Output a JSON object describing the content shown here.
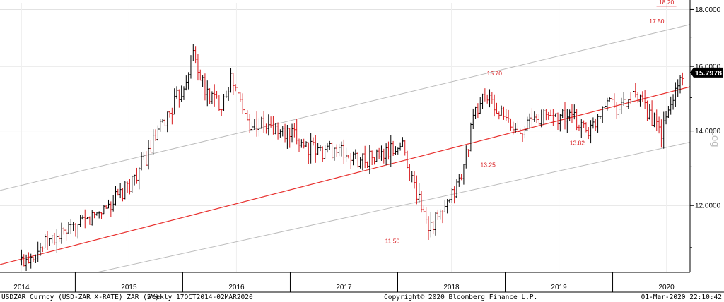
{
  "chart_data": {
    "type": "ohlc-bar",
    "title": "",
    "scale": "Log",
    "yscale": "log",
    "ylim": [
      10.45,
      18.25
    ],
    "y_ticks": [
      "12.0000",
      "14.0000",
      "16.0000",
      "18.0000"
    ],
    "y_tick_values": [
      12,
      14,
      16,
      18
    ],
    "x_labels": [
      "2014",
      "2015",
      "2016",
      "2017",
      "2018",
      "2019",
      "2020"
    ],
    "x_label_positions": [
      2014.0,
      2015.0,
      2016.0,
      2017.0,
      2018.0,
      2019.0,
      2020.0
    ],
    "x_dividers": [
      2014.5,
      2015.5,
      2016.5,
      2017.5,
      2018.5,
      2019.5
    ],
    "xlim": [
      2013.8,
      2020.22
    ],
    "last_value": "15.7978",
    "last_value_num": 15.7978,
    "grid": true,
    "channel": {
      "middle": {
        "from": [
          2013.8,
          10.62
        ],
        "to": [
          2020.22,
          15.34
        ],
        "color": "#e8302e"
      },
      "upper": {
        "from": [
          2013.8,
          12.38
        ],
        "to": [
          2020.22,
          17.45
        ],
        "color": "#bcbcbc"
      },
      "lower": {
        "from": [
          2014.7,
          10.45
        ],
        "to": [
          2020.22,
          13.68
        ],
        "color": "#bcbcbc"
      }
    },
    "annotations": [
      {
        "text": "18.20",
        "x": 2020.0,
        "y": 18.2
      },
      {
        "text": "17.50",
        "x": 2019.91,
        "y": 17.5
      },
      {
        "text": "15.70",
        "x": 2018.4,
        "y": 15.7
      },
      {
        "text": "13.82",
        "x": 2019.17,
        "y": 13.6
      },
      {
        "text": "13.25",
        "x": 2018.34,
        "y": 13.0
      },
      {
        "text": "11.50",
        "x": 2017.45,
        "y": 11.1
      }
    ],
    "series_anchors": {
      "x": [
        2014.0,
        2014.3,
        2014.55,
        2014.75,
        2014.95,
        2015.15,
        2015.35,
        2015.5,
        2015.6,
        2015.7,
        2015.85,
        2015.95,
        2016.1,
        2016.3,
        2016.55,
        2016.75,
        2016.9,
        2017.1,
        2017.35,
        2017.55,
        2017.65,
        2017.8,
        2017.95,
        2018.1,
        2018.2,
        2018.3,
        2018.45,
        2018.6,
        2018.75,
        2018.9,
        2019.1,
        2019.3,
        2019.45,
        2019.55,
        2019.7,
        2019.85,
        2019.95,
        2020.05,
        2020.15
      ],
      "close": [
        10.7,
        11.2,
        11.5,
        11.9,
        12.3,
        13.2,
        14.4,
        15.3,
        16.5,
        15.2,
        14.8,
        15.6,
        14.3,
        14.1,
        13.8,
        13.4,
        13.5,
        13.2,
        13.3,
        13.6,
        12.5,
        11.5,
        11.9,
        12.8,
        14.3,
        15.1,
        14.5,
        14.0,
        14.3,
        14.5,
        14.4,
        14.0,
        15.1,
        14.7,
        15.0,
        14.5,
        13.9,
        14.9,
        15.8
      ]
    },
    "bar_count": 282,
    "up_color": "#000000",
    "down_color": "#d8191c"
  },
  "footer": {
    "security": "USDZAR Curncy (USD-ZAR X-RATE) ZAR (5Y)",
    "period": "Weekly 17OCT2014-02MAR2020",
    "copyright": "Copyright© 2020 Bloomberg Finance L.P.",
    "timestamp": "01-Mar-2020 22:10:42"
  }
}
